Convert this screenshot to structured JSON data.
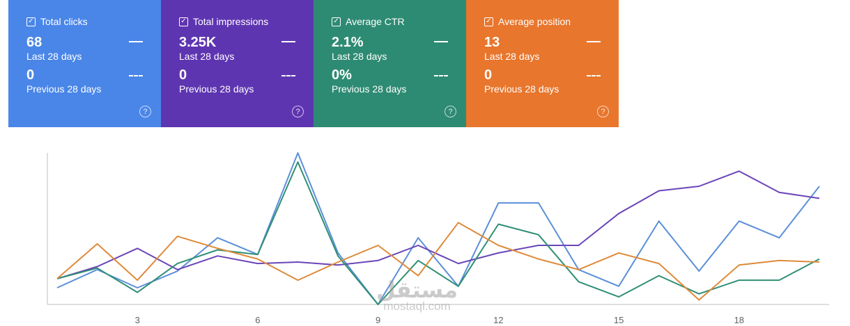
{
  "metrics": [
    {
      "label": "Total clicks",
      "value": "68",
      "period": "Last 28 days",
      "prev_value": "0",
      "prev_period": "Previous 28 days",
      "color": "#4a86e8",
      "checked": true
    },
    {
      "label": "Total impressions",
      "value": "3.25K",
      "period": "Last 28 days",
      "prev_value": "0",
      "prev_period": "Previous 28 days",
      "color": "#5e35b1",
      "checked": true
    },
    {
      "label": "Average CTR",
      "value": "2.1%",
      "period": "Last 28 days",
      "prev_value": "0%",
      "prev_period": "Previous 28 days",
      "color": "#2e8b73",
      "checked": true
    },
    {
      "label": "Average position",
      "value": "13",
      "period": "Last 28 days",
      "prev_value": "0",
      "prev_period": "Previous 28 days",
      "color": "#e8762d",
      "checked": true
    }
  ],
  "chart_data": {
    "type": "line",
    "x": [
      1,
      2,
      3,
      4,
      5,
      6,
      7,
      8,
      9,
      10,
      11,
      12,
      13,
      14,
      15,
      16,
      17,
      18,
      19,
      20
    ],
    "xticks": [
      3,
      6,
      9,
      12,
      15,
      18
    ],
    "ylim": [
      0,
      100
    ],
    "grid": false,
    "series": [
      {
        "color": "#5b8fd9",
        "values": [
          11,
          23,
          11,
          22,
          44,
          33,
          100,
          34,
          0,
          44,
          12,
          67,
          67,
          23,
          12,
          55,
          22,
          55,
          44,
          78
        ]
      },
      {
        "color": "#6a45b8",
        "values": [
          17,
          25,
          37,
          23,
          32,
          27,
          28,
          26,
          29,
          39,
          27,
          34,
          39,
          39,
          60,
          75,
          78,
          88,
          74,
          70
        ]
      },
      {
        "color": "#2f8f75",
        "values": [
          17,
          24,
          8,
          27,
          36,
          33,
          94,
          32,
          0,
          29,
          12,
          53,
          46,
          15,
          5,
          19,
          7,
          16,
          16,
          30
        ]
      },
      {
        "color": "#de8a3a",
        "values": [
          17,
          40,
          16,
          45,
          37,
          30,
          16,
          28,
          39,
          19,
          54,
          39,
          30,
          23,
          34,
          27,
          3,
          26,
          29,
          28
        ]
      }
    ]
  },
  "watermark": {
    "arabic": "مستقل",
    "latin": "mostaql.com"
  }
}
